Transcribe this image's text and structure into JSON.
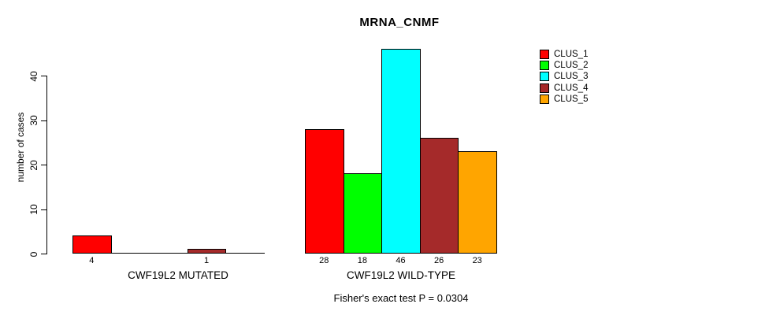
{
  "chart_data": {
    "type": "bar",
    "title": "MRNA_CNMF",
    "ylabel": "number of cases",
    "ylim": [
      0,
      46
    ],
    "yticks": [
      0,
      10,
      20,
      30,
      40
    ],
    "grid": false,
    "categories": [
      "CLUS_1",
      "CLUS_2",
      "CLUS_3",
      "CLUS_4",
      "CLUS_5"
    ],
    "cluster_colors": [
      "#FF0000",
      "#00FF00",
      "#00FFFF",
      "#A52A2A",
      "#FFA500"
    ],
    "groups": [
      {
        "label": "CWF19L2 MUTATED",
        "values": [
          4,
          0,
          0,
          1,
          0
        ]
      },
      {
        "label": "CWF19L2 WILD-TYPE",
        "values": [
          28,
          18,
          46,
          26,
          23
        ]
      }
    ],
    "legend": {
      "position": "right",
      "entries": [
        "CLUS_1",
        "CLUS_2",
        "CLUS_3",
        "CLUS_4",
        "CLUS_5"
      ]
    },
    "annotation": "Fisher's exact test P = 0.0304"
  }
}
